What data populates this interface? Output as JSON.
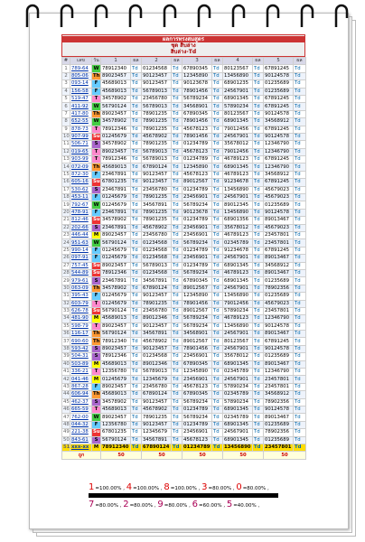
{
  "header": {
    "title": "ผลการทรงสมสูตร",
    "subtitle": "ชุด สิบล่าง",
    "formula": "สิบล่าง-Td"
  },
  "table": {
    "columns": [
      "#",
      "เลข",
      "วัน",
      "1",
      "ผล",
      "2",
      "ผล",
      "3",
      "ผล",
      "4",
      "ผล",
      "5",
      "ผล"
    ],
    "rows": [
      [
        "1",
        "789-64",
        "W",
        "78912340",
        "Td",
        "01234568",
        "Td",
        "67890345",
        "Td",
        "80123567",
        "Td",
        "67891245",
        "Td"
      ],
      [
        "2",
        "805-06",
        "Th",
        "89023457",
        "Td",
        "90123457",
        "Td",
        "12345890",
        "Td",
        "13456890",
        "Td",
        "90124578",
        "Td"
      ],
      [
        "3",
        "093-14",
        "F",
        "45689013",
        "Td",
        "90123457",
        "Td",
        "90123678",
        "Td",
        "68901235",
        "Td",
        "01235689",
        "Td"
      ],
      [
        "4",
        "156-58",
        "F",
        "45689013",
        "Td",
        "56789013",
        "Td",
        "78901456",
        "Td",
        "24567901",
        "Td",
        "01235689",
        "Td"
      ],
      [
        "5",
        "519-47",
        "T",
        "34578902",
        "Td",
        "23456780",
        "Td",
        "56789234",
        "Td",
        "68901345",
        "Td",
        "67891245",
        "Td"
      ],
      [
        "6",
        "411-92",
        "W",
        "56790124",
        "Td",
        "56789013",
        "Td",
        "34568901",
        "Td",
        "57890234",
        "Td",
        "67891245",
        "Td"
      ],
      [
        "7",
        "417-80",
        "Th",
        "89023457",
        "Td",
        "78901235",
        "Td",
        "67890345",
        "Td",
        "80123567",
        "Td",
        "90124578",
        "Td"
      ],
      [
        "8",
        "652-55",
        "W",
        "34578902",
        "Td",
        "78901235",
        "Td",
        "78901456",
        "Td",
        "68901345",
        "Td",
        "34568912",
        "Td"
      ],
      [
        "9",
        "878-73",
        "T",
        "78912346",
        "Td",
        "78901235",
        "Td",
        "45678123",
        "Td",
        "79012456",
        "Td",
        "67891245",
        "Td"
      ],
      [
        "10",
        "907-99",
        "Su",
        "01245679",
        "Td",
        "45678902",
        "Td",
        "78901456",
        "Td",
        "24567901",
        "Td",
        "90124578",
        "Td"
      ],
      [
        "11",
        "506-71",
        "S",
        "34578902",
        "Td",
        "78901235",
        "Td",
        "01234789",
        "Td",
        "35678012",
        "Td",
        "12346790",
        "Td"
      ],
      [
        "12",
        "019-65",
        "T",
        "89023457",
        "Td",
        "56789013",
        "Td",
        "45678123",
        "Td",
        "79012456",
        "Td",
        "12346790",
        "Td"
      ],
      [
        "13",
        "903-99",
        "T",
        "78912346",
        "Td",
        "56789013",
        "Td",
        "01234789",
        "Td",
        "46789123",
        "Td",
        "67891245",
        "Td"
      ],
      [
        "14",
        "072-09",
        "Th",
        "45689013",
        "Td",
        "67890124",
        "Td",
        "12345890",
        "Td",
        "68901345",
        "Td",
        "12346790",
        "Td"
      ],
      [
        "15",
        "872-30",
        "F",
        "23467891",
        "Td",
        "90123457",
        "Td",
        "45678123",
        "Td",
        "46789123",
        "Td",
        "34568912",
        "Td"
      ],
      [
        "16",
        "605-16",
        "Su",
        "67801235",
        "Td",
        "90123457",
        "Td",
        "89012567",
        "Td",
        "91234678",
        "Td",
        "67891245",
        "Td"
      ],
      [
        "17",
        "530-62",
        "S",
        "23467891",
        "Td",
        "23456780",
        "Td",
        "01234789",
        "Td",
        "13456890",
        "Td",
        "45679023",
        "Td"
      ],
      [
        "18",
        "453-11",
        "F",
        "01245679",
        "Td",
        "78901235",
        "Td",
        "23456901",
        "Td",
        "24567901",
        "Td",
        "45679023",
        "Td"
      ],
      [
        "19",
        "792-67",
        "W",
        "01245679",
        "Td",
        "34567891",
        "Td",
        "56789234",
        "Td",
        "89012345",
        "Td",
        "01235689",
        "Td"
      ],
      [
        "20",
        "478-91",
        "F",
        "23467891",
        "Td",
        "78901235",
        "Td",
        "90123678",
        "Td",
        "13456890",
        "Td",
        "90124578",
        "Td"
      ],
      [
        "21",
        "812-46",
        "Su",
        "34578902",
        "Td",
        "78901235",
        "Td",
        "01234789",
        "Td",
        "68901356",
        "Td",
        "89013467",
        "Td"
      ],
      [
        "22",
        "202-66",
        "S",
        "23467891",
        "Td",
        "45678902",
        "Td",
        "23456901",
        "Td",
        "35678012",
        "Td",
        "45679023",
        "Td"
      ],
      [
        "23",
        "446-44",
        "M",
        "89023457",
        "Td",
        "23456780",
        "Td",
        "23456901",
        "Td",
        "46789123",
        "Td",
        "23457801",
        "Td"
      ],
      [
        "24",
        "951-63",
        "W",
        "56790124",
        "Td",
        "01234568",
        "Td",
        "56789234",
        "Td",
        "02345789",
        "Td",
        "23457801",
        "Td"
      ],
      [
        "25",
        "990-14",
        "F",
        "01245679",
        "Td",
        "01234568",
        "Td",
        "01234789",
        "Td",
        "91234678",
        "Td",
        "67891245",
        "Td"
      ],
      [
        "26",
        "097-91",
        "F",
        "01245679",
        "Td",
        "01234568",
        "Td",
        "23456901",
        "Td",
        "24567901",
        "Td",
        "89013467",
        "Td"
      ],
      [
        "27",
        "757-45",
        "Su",
        "89023457",
        "Td",
        "56789013",
        "Td",
        "01234789",
        "Td",
        "68901345",
        "Td",
        "34568912",
        "Td"
      ],
      [
        "28",
        "544-89",
        "Su",
        "78912346",
        "Td",
        "01234568",
        "Td",
        "56789234",
        "Td",
        "46789123",
        "Td",
        "89013467",
        "Td"
      ],
      [
        "29",
        "979-61",
        "S",
        "23467891",
        "Td",
        "34567891",
        "Td",
        "67890345",
        "Td",
        "68901345",
        "Td",
        "01235689",
        "Td"
      ],
      [
        "30",
        "063-09",
        "Th",
        "34578902",
        "Td",
        "67890124",
        "Td",
        "89012567",
        "Td",
        "24567901",
        "Td",
        "78902356",
        "Td"
      ],
      [
        "31",
        "395-43",
        "F",
        "01245679",
        "Td",
        "90123457",
        "Td",
        "12345890",
        "Td",
        "13456890",
        "Td",
        "01235689",
        "Td"
      ],
      [
        "32",
        "603-79",
        "T",
        "01245679",
        "Td",
        "78901235",
        "Td",
        "78901456",
        "Td",
        "79012456",
        "Td",
        "45679023",
        "Td"
      ],
      [
        "33",
        "626-78",
        "Su",
        "56790124",
        "Td",
        "23456780",
        "Td",
        "89012567",
        "Td",
        "57890234",
        "Td",
        "23457801",
        "Td"
      ],
      [
        "34",
        "481-90",
        "M",
        "45689013",
        "Td",
        "89012346",
        "Td",
        "56789234",
        "Td",
        "46789123",
        "Td",
        "12346790",
        "Td"
      ],
      [
        "35",
        "598-79",
        "T",
        "89023457",
        "Td",
        "90123457",
        "Td",
        "56789234",
        "Td",
        "13456890",
        "Td",
        "90124578",
        "Td"
      ],
      [
        "36",
        "116-17",
        "Th",
        "56790124",
        "Td",
        "34567891",
        "Td",
        "34568901",
        "Td",
        "24567901",
        "Td",
        "89013467",
        "Td"
      ],
      [
        "37",
        "690-60",
        "Th",
        "78912340",
        "Td",
        "45678902",
        "Td",
        "89012567",
        "Td",
        "80123567",
        "Td",
        "67891245",
        "Td"
      ],
      [
        "38",
        "593-42",
        "S",
        "89023457",
        "Td",
        "90123457",
        "Td",
        "78901456",
        "Td",
        "24567901",
        "Td",
        "90124578",
        "Td"
      ],
      [
        "39",
        "504-31",
        "S",
        "78912346",
        "Td",
        "01234568",
        "Td",
        "23456901",
        "Td",
        "35678012",
        "Td",
        "01235689",
        "Td"
      ],
      [
        "40",
        "503-89",
        "M",
        "45689013",
        "Td",
        "89012346",
        "Td",
        "67890345",
        "Td",
        "68901345",
        "Td",
        "89013467",
        "Td"
      ],
      [
        "41",
        "336-21",
        "T",
        "12356780",
        "Td",
        "56789013",
        "Td",
        "12345890",
        "Td",
        "02345789",
        "Td",
        "12346790",
        "Td"
      ],
      [
        "42",
        "041-46",
        "M",
        "01245679",
        "Td",
        "12345679",
        "Td",
        "23456901",
        "Td",
        "24567901",
        "Td",
        "23457801",
        "Td"
      ],
      [
        "43",
        "867-28",
        "F",
        "89023457",
        "Td",
        "23456780",
        "Td",
        "45678123",
        "Td",
        "57890234",
        "Td",
        "23457801",
        "Td"
      ],
      [
        "44",
        "606-94",
        "Th",
        "45689013",
        "Td",
        "67890124",
        "Td",
        "67890345",
        "Td",
        "02345789",
        "Td",
        "34568912",
        "Td"
      ],
      [
        "45",
        "462-37",
        "S",
        "34578902",
        "Td",
        "90123457",
        "Td",
        "56789234",
        "Td",
        "57890234",
        "Td",
        "78902356",
        "Td"
      ],
      [
        "46",
        "665-59",
        "T",
        "45689013",
        "Td",
        "45678902",
        "Td",
        "01234789",
        "Td",
        "68901345",
        "Td",
        "90124578",
        "Td"
      ],
      [
        "47",
        "762-00",
        "W",
        "89023457",
        "Td",
        "78901235",
        "Td",
        "56789234",
        "Td",
        "02345789",
        "Td",
        "89013467",
        "Td"
      ],
      [
        "48",
        "044-32",
        "F",
        "12356780",
        "Td",
        "90123457",
        "Td",
        "01234789",
        "Td",
        "68901345",
        "Td",
        "01235689",
        "Td"
      ],
      [
        "49",
        "221-38",
        "Su",
        "67801235",
        "Td",
        "12345679",
        "Td",
        "23456901",
        "Td",
        "24567901",
        "Td",
        "78902356",
        "Td"
      ],
      [
        "50",
        "843-61",
        "S",
        "56790124",
        "Td",
        "34567891",
        "Td",
        "45678123",
        "Td",
        "68901345",
        "Td",
        "01235689",
        "Td"
      ],
      [
        "51",
        "xxx-xx",
        "M",
        "78912340",
        "Td",
        "67890124",
        "Td",
        "01234789",
        "Td",
        "13456890",
        "Td",
        "23457801",
        "Td"
      ]
    ],
    "footer": [
      "ถูก",
      "50",
      "50",
      "50",
      "50",
      "50"
    ]
  },
  "legend": [
    [
      {
        "digit": "1",
        "pct": "=100.00% ,"
      },
      {
        "digit": "4",
        "pct": "=100.00% ,"
      },
      {
        "digit": "8",
        "pct": "=100.00% ,"
      },
      {
        "digit": "3",
        "pct": "=80.00% ,"
      },
      {
        "digit": "0",
        "pct": "=80.00% ,"
      }
    ],
    [
      {
        "digit": "7",
        "pct": "=80.00% ,"
      },
      {
        "digit": "2",
        "pct": "=80.00% ,"
      },
      {
        "digit": "9",
        "pct": "=80.00% ,"
      },
      {
        "digit": "6",
        "pct": "=60.00% ,"
      },
      {
        "digit": "5",
        "pct": "=40.00% ,"
      }
    ]
  ]
}
